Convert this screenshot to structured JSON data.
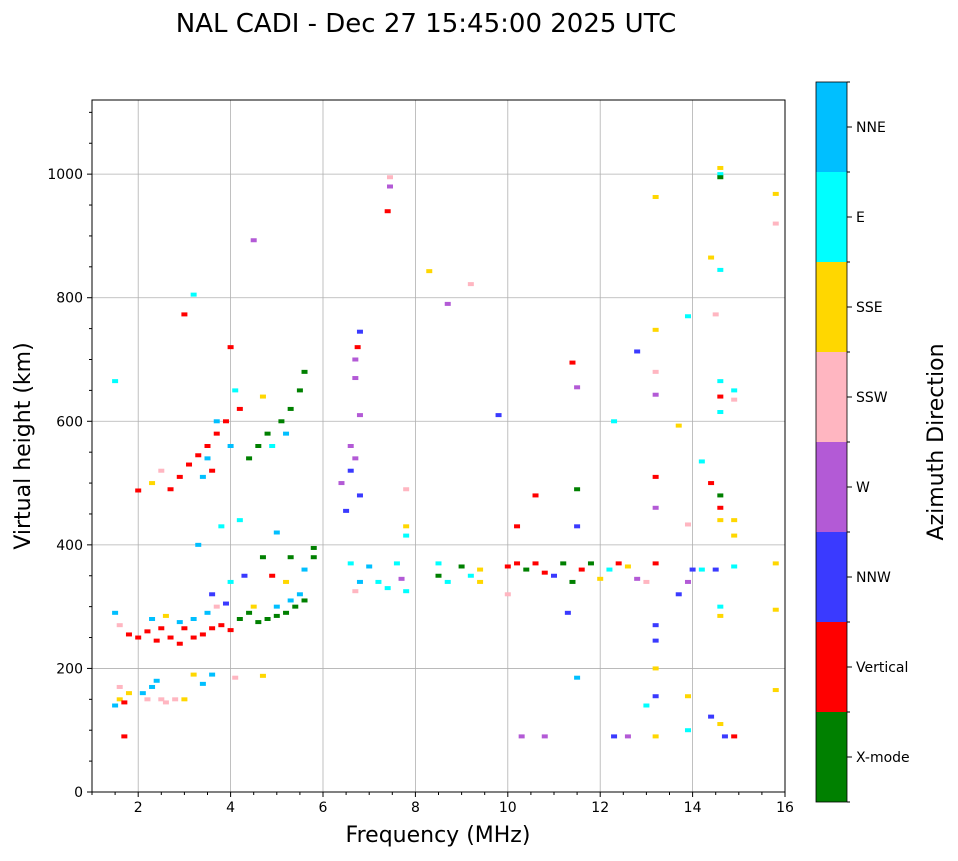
{
  "chart_data": {
    "type": "scatter",
    "title": "NAL CADI - Dec 27 15:45:00 2025 UTC",
    "xlabel": "Frequency (MHz)",
    "ylabel": "Virtual height (km)",
    "xlim": [
      1,
      16
    ],
    "ylim": [
      0,
      1120
    ],
    "xticks": [
      2,
      4,
      6,
      8,
      10,
      12,
      14,
      16
    ],
    "yticks": [
      0,
      200,
      400,
      600,
      800,
      1000
    ],
    "grid": true,
    "colorbar": {
      "label": "Azimuth Direction",
      "categories": [
        "X-mode",
        "Vertical",
        "NNW",
        "W",
        "SSW",
        "SSE",
        "E",
        "NNE"
      ],
      "colors": [
        "#008000",
        "#ff0000",
        "#3a3aff",
        "#b35ad6",
        "#ffb6c1",
        "#ffd700",
        "#00ffff",
        "#00bfff"
      ]
    },
    "point_fields": [
      "frequency_mhz",
      "height_km",
      "direction_index"
    ],
    "points": [
      [
        1.5,
        140,
        7
      ],
      [
        1.6,
        150,
        5
      ],
      [
        1.7,
        145,
        1
      ],
      [
        1.8,
        160,
        5
      ],
      [
        1.6,
        170,
        4
      ],
      [
        2.1,
        160,
        7
      ],
      [
        2.3,
        170,
        7
      ],
      [
        2.4,
        180,
        7
      ],
      [
        2.2,
        150,
        4
      ],
      [
        2.6,
        145,
        4
      ],
      [
        2.8,
        150,
        4
      ],
      [
        3.0,
        150,
        5
      ],
      [
        3.2,
        190,
        5
      ],
      [
        3.4,
        175,
        7
      ],
      [
        3.6,
        190,
        7
      ],
      [
        4.1,
        185,
        4
      ],
      [
        4.7,
        188,
        5
      ],
      [
        1.7,
        90,
        1
      ],
      [
        2.5,
        150,
        4
      ],
      [
        1.6,
        270,
        4
      ],
      [
        1.5,
        290,
        7
      ],
      [
        1.8,
        255,
        1
      ],
      [
        2.0,
        250,
        1
      ],
      [
        2.2,
        260,
        1
      ],
      [
        2.4,
        245,
        1
      ],
      [
        2.5,
        265,
        1
      ],
      [
        2.7,
        250,
        1
      ],
      [
        2.9,
        240,
        1
      ],
      [
        3.0,
        265,
        1
      ],
      [
        3.2,
        250,
        1
      ],
      [
        3.4,
        255,
        1
      ],
      [
        3.6,
        265,
        1
      ],
      [
        3.8,
        270,
        1
      ],
      [
        4.0,
        262,
        1
      ],
      [
        2.3,
        280,
        7
      ],
      [
        2.6,
        285,
        5
      ],
      [
        2.9,
        275,
        7
      ],
      [
        3.2,
        280,
        7
      ],
      [
        3.5,
        290,
        7
      ],
      [
        3.7,
        300,
        4
      ],
      [
        3.9,
        305,
        2
      ],
      [
        4.2,
        280,
        0
      ],
      [
        4.4,
        290,
        0
      ],
      [
        4.6,
        275,
        0
      ],
      [
        4.8,
        280,
        0
      ],
      [
        5.0,
        285,
        0
      ],
      [
        5.2,
        290,
        0
      ],
      [
        5.4,
        300,
        0
      ],
      [
        5.6,
        310,
        0
      ],
      [
        5.8,
        380,
        0
      ],
      [
        5.0,
        300,
        7
      ],
      [
        5.3,
        310,
        7
      ],
      [
        5.5,
        320,
        7
      ],
      [
        4.5,
        300,
        5
      ],
      [
        4.9,
        350,
        1
      ],
      [
        5.2,
        340,
        5
      ],
      [
        5.6,
        360,
        7
      ],
      [
        4.0,
        340,
        6
      ],
      [
        4.3,
        350,
        2
      ],
      [
        3.6,
        320,
        2
      ],
      [
        3.3,
        400,
        7
      ],
      [
        3.8,
        430,
        6
      ],
      [
        4.2,
        440,
        6
      ],
      [
        5.0,
        420,
        7
      ],
      [
        5.3,
        380,
        0
      ],
      [
        4.7,
        380,
        0
      ],
      [
        5.8,
        395,
        0
      ],
      [
        2.0,
        488,
        1
      ],
      [
        2.3,
        500,
        5
      ],
      [
        2.5,
        520,
        4
      ],
      [
        2.7,
        490,
        1
      ],
      [
        2.9,
        510,
        1
      ],
      [
        3.1,
        530,
        1
      ],
      [
        3.3,
        545,
        1
      ],
      [
        3.5,
        560,
        1
      ],
      [
        3.6,
        520,
        1
      ],
      [
        3.7,
        580,
        1
      ],
      [
        3.9,
        600,
        1
      ],
      [
        3.4,
        510,
        7
      ],
      [
        3.7,
        600,
        7
      ],
      [
        4.0,
        560,
        7
      ],
      [
        4.2,
        620,
        1
      ],
      [
        3.5,
        540,
        7
      ],
      [
        4.4,
        540,
        0
      ],
      [
        4.6,
        560,
        0
      ],
      [
        4.8,
        580,
        0
      ],
      [
        5.1,
        600,
        0
      ],
      [
        5.3,
        620,
        0
      ],
      [
        5.5,
        650,
        0
      ],
      [
        5.6,
        680,
        0
      ],
      [
        5.2,
        580,
        7
      ],
      [
        4.9,
        560,
        6
      ],
      [
        4.7,
        640,
        5
      ],
      [
        4.1,
        650,
        6
      ],
      [
        4.0,
        720,
        1
      ],
      [
        3.2,
        805,
        6
      ],
      [
        3.0,
        773,
        1
      ],
      [
        4.5,
        893,
        3
      ],
      [
        1.5,
        665,
        6
      ],
      [
        6.4,
        500,
        3
      ],
      [
        6.6,
        520,
        2
      ],
      [
        6.7,
        540,
        3
      ],
      [
        6.6,
        560,
        3
      ],
      [
        6.8,
        480,
        2
      ],
      [
        6.5,
        455,
        2
      ],
      [
        6.7,
        700,
        3
      ],
      [
        6.75,
        720,
        1
      ],
      [
        6.8,
        745,
        2
      ],
      [
        6.8,
        610,
        3
      ],
      [
        6.7,
        670,
        3
      ],
      [
        7.4,
        940,
        1
      ],
      [
        7.45,
        980,
        3
      ],
      [
        7.45,
        995,
        4
      ],
      [
        6.6,
        370,
        6
      ],
      [
        6.8,
        340,
        7
      ],
      [
        6.7,
        325,
        4
      ],
      [
        7.0,
        365,
        7
      ],
      [
        7.2,
        340,
        6
      ],
      [
        7.4,
        330,
        6
      ],
      [
        7.6,
        370,
        6
      ],
      [
        7.7,
        345,
        3
      ],
      [
        7.8,
        325,
        6
      ],
      [
        7.8,
        490,
        4
      ],
      [
        7.8,
        415,
        6
      ],
      [
        7.8,
        430,
        5
      ],
      [
        8.3,
        843,
        5
      ],
      [
        8.7,
        790,
        3
      ],
      [
        9.2,
        822,
        4
      ],
      [
        8.5,
        370,
        6
      ],
      [
        8.5,
        350,
        0
      ],
      [
        8.7,
        340,
        6
      ],
      [
        9.0,
        365,
        0
      ],
      [
        9.2,
        350,
        6
      ],
      [
        9.4,
        360,
        5
      ],
      [
        9.4,
        340,
        5
      ],
      [
        10.0,
        365,
        1
      ],
      [
        10.2,
        370,
        1
      ],
      [
        10.4,
        360,
        0
      ],
      [
        10.6,
        370,
        1
      ],
      [
        10.8,
        355,
        1
      ],
      [
        11.0,
        350,
        2
      ],
      [
        11.2,
        370,
        0
      ],
      [
        11.4,
        340,
        0
      ],
      [
        11.6,
        360,
        1
      ],
      [
        11.8,
        370,
        0
      ],
      [
        12.0,
        345,
        5
      ],
      [
        12.2,
        360,
        6
      ],
      [
        12.4,
        370,
        1
      ],
      [
        12.6,
        365,
        5
      ],
      [
        12.8,
        345,
        3
      ],
      [
        13.0,
        340,
        4
      ],
      [
        13.2,
        370,
        1
      ],
      [
        10.0,
        320,
        4
      ],
      [
        10.2,
        430,
        1
      ],
      [
        10.6,
        480,
        1
      ],
      [
        11.4,
        695,
        1
      ],
      [
        11.5,
        655,
        3
      ],
      [
        11.5,
        430,
        2
      ],
      [
        11.5,
        490,
        0
      ],
      [
        11.5,
        185,
        7
      ],
      [
        11.3,
        290,
        2
      ],
      [
        10.8,
        90,
        3
      ],
      [
        10.3,
        90,
        3
      ],
      [
        9.8,
        610,
        2
      ],
      [
        12.3,
        600,
        6
      ],
      [
        12.8,
        713,
        2
      ],
      [
        13.2,
        748,
        5
      ],
      [
        13.2,
        680,
        4
      ],
      [
        13.2,
        643,
        3
      ],
      [
        13.2,
        510,
        1
      ],
      [
        13.2,
        460,
        3
      ],
      [
        13.2,
        270,
        2
      ],
      [
        13.2,
        245,
        2
      ],
      [
        13.2,
        200,
        5
      ],
      [
        13.2,
        155,
        2
      ],
      [
        13.0,
        140,
        6
      ],
      [
        13.2,
        90,
        5
      ],
      [
        12.6,
        90,
        3
      ],
      [
        12.3,
        90,
        2
      ],
      [
        13.2,
        963,
        5
      ],
      [
        13.7,
        593,
        5
      ],
      [
        13.9,
        770,
        6
      ],
      [
        13.9,
        433,
        4
      ],
      [
        13.9,
        340,
        3
      ],
      [
        13.7,
        320,
        2
      ],
      [
        13.9,
        155,
        5
      ],
      [
        13.9,
        100,
        6
      ],
      [
        14.2,
        535,
        6
      ],
      [
        14.4,
        500,
        1
      ],
      [
        14.4,
        865,
        5
      ],
      [
        14.6,
        1010,
        5
      ],
      [
        14.6,
        1000,
        6
      ],
      [
        14.6,
        995,
        0
      ],
      [
        14.6,
        845,
        6
      ],
      [
        14.6,
        665,
        6
      ],
      [
        14.6,
        640,
        1
      ],
      [
        14.6,
        615,
        6
      ],
      [
        14.6,
        480,
        0
      ],
      [
        14.6,
        460,
        1
      ],
      [
        14.6,
        440,
        5
      ],
      [
        14.9,
        440,
        5
      ],
      [
        14.9,
        650,
        6
      ],
      [
        14.9,
        635,
        4
      ],
      [
        14.5,
        773,
        4
      ],
      [
        14.4,
        122,
        2
      ],
      [
        14.6,
        110,
        5
      ],
      [
        14.6,
        300,
        6
      ],
      [
        14.6,
        285,
        5
      ],
      [
        14.7,
        90,
        2
      ],
      [
        14.9,
        90,
        1
      ],
      [
        14.9,
        415,
        5
      ],
      [
        14.9,
        365,
        6
      ],
      [
        14.2,
        360,
        6
      ],
      [
        14.5,
        360,
        2
      ],
      [
        14.0,
        360,
        2
      ],
      [
        15.8,
        968,
        5
      ],
      [
        15.8,
        920,
        4
      ],
      [
        15.8,
        370,
        5
      ],
      [
        15.8,
        295,
        5
      ],
      [
        15.8,
        165,
        5
      ]
    ]
  }
}
